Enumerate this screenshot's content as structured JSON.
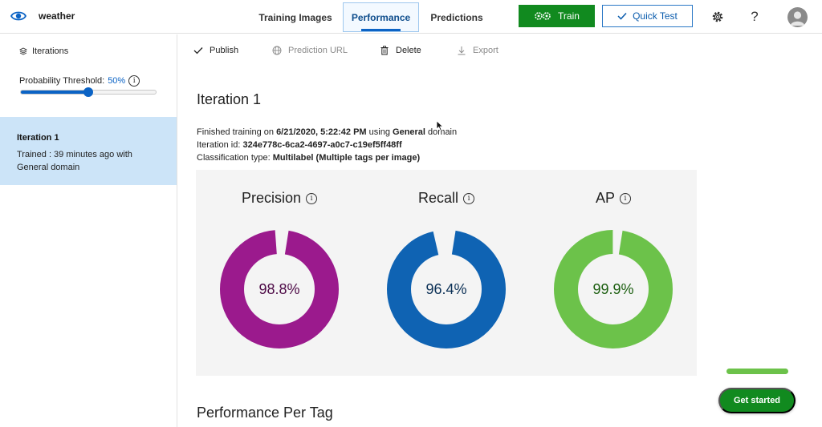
{
  "header": {
    "app_name": "weather",
    "tabs": [
      {
        "label": "Training Images",
        "active": false
      },
      {
        "label": "Performance",
        "active": true
      },
      {
        "label": "Predictions",
        "active": false
      }
    ],
    "train_label": "Train",
    "quick_test_label": "Quick Test",
    "help_label": "?",
    "icons": [
      "eye-icon",
      "gears-icon",
      "check-icon",
      "gear-icon",
      "help-icon",
      "avatar"
    ]
  },
  "sidebar": {
    "heading": "Iterations",
    "threshold_label": "Probability Threshold: ",
    "threshold_value": "50%",
    "threshold_fraction": 0.5,
    "iteration": {
      "title": "Iteration 1",
      "description": "Trained : 39 minutes ago with General domain"
    }
  },
  "toolbar": {
    "publish": "Publish",
    "prediction_url": "Prediction URL",
    "delete": "Delete",
    "export": "Export"
  },
  "main": {
    "title": "Iteration 1",
    "line1_prefix": "Finished training on ",
    "line1_date": "6/21/2020, 5:22:42 PM",
    "line1_mid": " using ",
    "line1_domain": "General",
    "line1_suffix": " domain",
    "line2_prefix": "Iteration id: ",
    "line2_id": "324e778c-6ca2-4697-a0c7-c19ef5ff48ff",
    "line3_prefix": "Classification type: ",
    "line3_type": "Multilabel (Multiple tags per image)",
    "perf_per_tag": "Performance Per Tag"
  },
  "metrics": [
    {
      "name": "Precision",
      "value": 98.8,
      "label": "98.8%",
      "color": "#9b1a8d",
      "text_color": "#4d0a46"
    },
    {
      "name": "Recall",
      "value": 96.4,
      "label": "96.4%",
      "color": "#0f63b3",
      "text_color": "#0a2f55"
    },
    {
      "name": "AP",
      "value": 99.9,
      "label": "99.9%",
      "color": "#6cc24a",
      "text_color": "#1b5e0f"
    }
  ],
  "get_started": {
    "label": "Get started",
    "progress": 1.0
  },
  "colors": {
    "accent": "#0b63c5",
    "train_green": "#118a1f",
    "selected_bg": "#cce4f8",
    "panel_bg": "#f4f4f4"
  }
}
